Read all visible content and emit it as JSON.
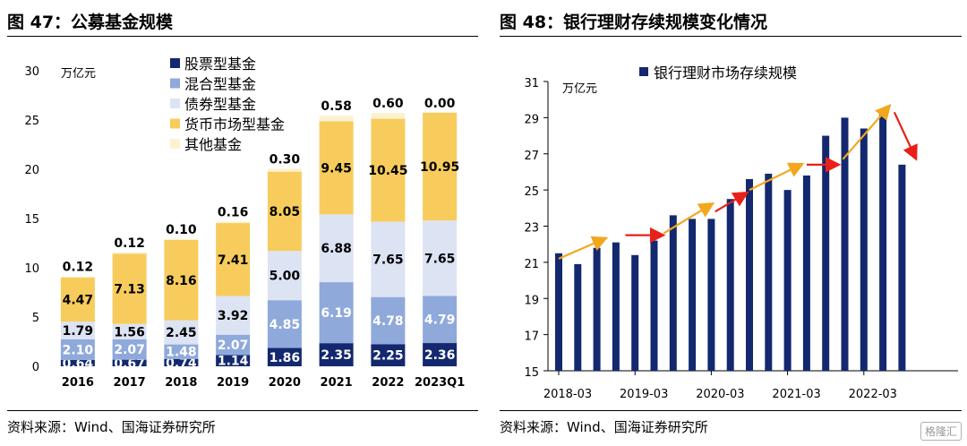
{
  "left": {
    "title": "图 47：公募基金规模",
    "source": "资料来源：Wind、国海证券研究所"
  },
  "right": {
    "title": "图 48：银行理财存续规模变化情况",
    "source": "资料来源：Wind、国海证券研究所"
  },
  "watermark": "格隆汇",
  "colors": {
    "stock": "#13286e",
    "mixed": "#8fa9db",
    "bond": "#dce3f3",
    "money": "#f7cc5c",
    "other": "#fdf2d0",
    "bank_bar": "#13286e",
    "arrow_up": "#f2a81d",
    "arrow_flat": "#e8201a"
  },
  "chart_data": [
    {
      "type": "bar",
      "stacked": true,
      "title": "公募基金规模",
      "ylabel": "万亿元",
      "xlabel": "",
      "ylim": [
        0,
        30
      ],
      "yticks": [
        0,
        5,
        10,
        15,
        20,
        25,
        30
      ],
      "grid": false,
      "legend": "top-left",
      "categories": [
        "2016",
        "2017",
        "2018",
        "2019",
        "2020",
        "2021",
        "2022",
        "2023Q1"
      ],
      "series": [
        {
          "name": "股票型基金",
          "color_key": "stock",
          "values": [
            0.64,
            0.67,
            0.74,
            1.14,
            1.86,
            2.35,
            2.25,
            2.36
          ]
        },
        {
          "name": "混合型基金",
          "color_key": "mixed",
          "values": [
            2.1,
            2.07,
            1.48,
            2.07,
            4.85,
            6.19,
            4.78,
            4.79
          ]
        },
        {
          "name": "债券型基金",
          "color_key": "bond",
          "values": [
            1.79,
            1.56,
            2.45,
            3.92,
            5.0,
            6.88,
            7.65,
            7.65
          ]
        },
        {
          "name": "货币市场型基金",
          "color_key": "money",
          "values": [
            4.47,
            7.13,
            8.16,
            7.41,
            8.05,
            9.45,
            10.45,
            10.95
          ]
        },
        {
          "name": "其他基金",
          "color_key": "other",
          "values": [
            0.12,
            0.12,
            0.1,
            0.16,
            0.3,
            0.58,
            0.6,
            0.0
          ]
        }
      ],
      "value_labels": [
        [
          "0.64",
          "2.10",
          "1.79",
          "4.47",
          "0.12"
        ],
        [
          "0.67",
          "2.07",
          "1.56",
          "7.13",
          "0.12"
        ],
        [
          "0.74",
          "1.48",
          "2.45",
          "8.16",
          "0.10"
        ],
        [
          "1.14",
          "2.07",
          "3.92",
          "7.41",
          "0.16"
        ],
        [
          "1.86",
          "4.85",
          "5.00",
          "8.05",
          "0.30"
        ],
        [
          "2.35",
          "6.19",
          "6.88",
          "9.45",
          "0.58"
        ],
        [
          "2.25",
          "4.78",
          "7.65",
          "10.45",
          "0.60"
        ],
        [
          "2.36",
          "4.79",
          "7.65",
          "10.95",
          "0.00"
        ]
      ]
    },
    {
      "type": "bar",
      "title": "银行理财存续规模变化情况",
      "ylabel": "万亿元",
      "xlabel": "",
      "ylim": [
        15,
        31
      ],
      "yticks": [
        15,
        17,
        19,
        21,
        23,
        25,
        27,
        29,
        31
      ],
      "grid": false,
      "legend": "top-center",
      "x_tick_labels": [
        "2018-03",
        "2019-03",
        "2020-03",
        "2021-03",
        "2022-03"
      ],
      "series": [
        {
          "name": "银行理财市场存续规模",
          "values": [
            21.5,
            20.9,
            21.8,
            22.1,
            21.4,
            22.2,
            23.6,
            23.4,
            23.4,
            24.5,
            25.6,
            25.9,
            25.0,
            25.8,
            28.0,
            29.0,
            28.4,
            29.2,
            26.4
          ]
        }
      ]
    }
  ]
}
